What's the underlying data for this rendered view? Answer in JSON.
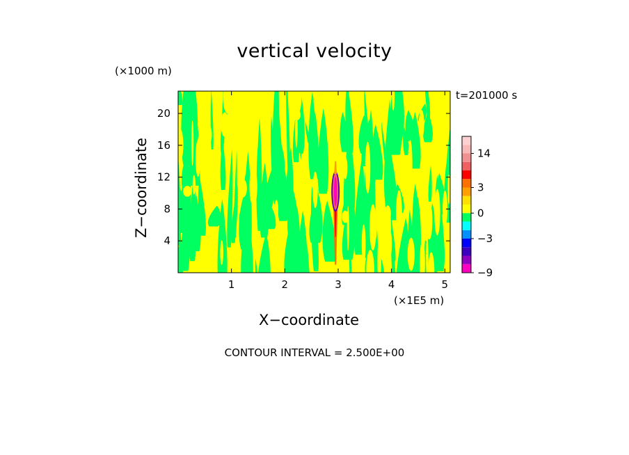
{
  "chart_data": {
    "type": "heatmap",
    "title": "vertical velocity",
    "xlabel": "X−coordinate",
    "ylabel": "Z−coordinate",
    "x_units": "(×1E5 m)",
    "z_units": "(×1000 m)",
    "time_label": "t=201000 s",
    "contour_interval": "CONTOUR INTERVAL = 2.500E+00",
    "xlim": [
      0,
      5.1
    ],
    "ylim": [
      0,
      22.8
    ],
    "x_ticks": [
      {
        "value": 1,
        "label": "1"
      },
      {
        "value": 2,
        "label": "2"
      },
      {
        "value": 3,
        "label": "3"
      },
      {
        "value": 4,
        "label": "4"
      },
      {
        "value": 5,
        "label": "5"
      }
    ],
    "y_ticks": [
      {
        "value": 4,
        "label": "4"
      },
      {
        "value": 8,
        "label": "8"
      },
      {
        "value": 12,
        "label": "12"
      },
      {
        "value": 16,
        "label": "16"
      },
      {
        "value": 20,
        "label": "20"
      }
    ],
    "colorbar": {
      "levels": [
        -9,
        -8,
        -6,
        -4,
        -3,
        -2,
        -1,
        0,
        1,
        2,
        3,
        4,
        6,
        10,
        14,
        18,
        21
      ],
      "colors": [
        "#ff00c0",
        "#9000c0",
        "#3c00c0",
        "#0000ff",
        "#0090ff",
        "#00ffff",
        "#00ff60",
        "#ffff00",
        "#ffe000",
        "#ffa000",
        "#ff7000",
        "#ff0000",
        "#f06060",
        "#f09090",
        "#f8b8b8",
        "#fcd0d0"
      ],
      "tick_labels": [
        {
          "value": 14,
          "label": "14"
        },
        {
          "value": 3,
          "label": "3"
        },
        {
          "value": 0,
          "label": "0"
        },
        {
          "value": -3,
          "label": "−3"
        },
        {
          "value": -9,
          "label": "−9"
        }
      ]
    },
    "field_colors": {
      "background": "#ffff00",
      "band": "#00ff60"
    },
    "updraft": {
      "x": 2.95,
      "core_z_range": [
        8,
        12.4
      ],
      "tail_z_range": [
        1,
        8
      ],
      "top_z": 14
    }
  }
}
